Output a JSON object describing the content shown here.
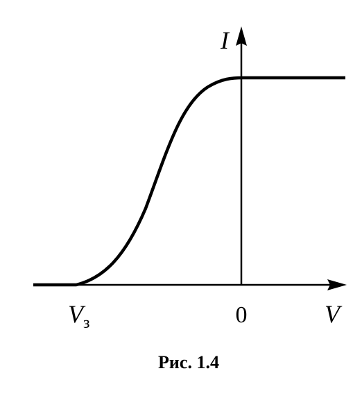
{
  "axes": {
    "y_label": "I",
    "x_label": "V",
    "origin_label": "0"
  },
  "cutoff_label": {
    "symbol": "V",
    "subscript": "з"
  },
  "caption": "Рис. 1.4"
}
